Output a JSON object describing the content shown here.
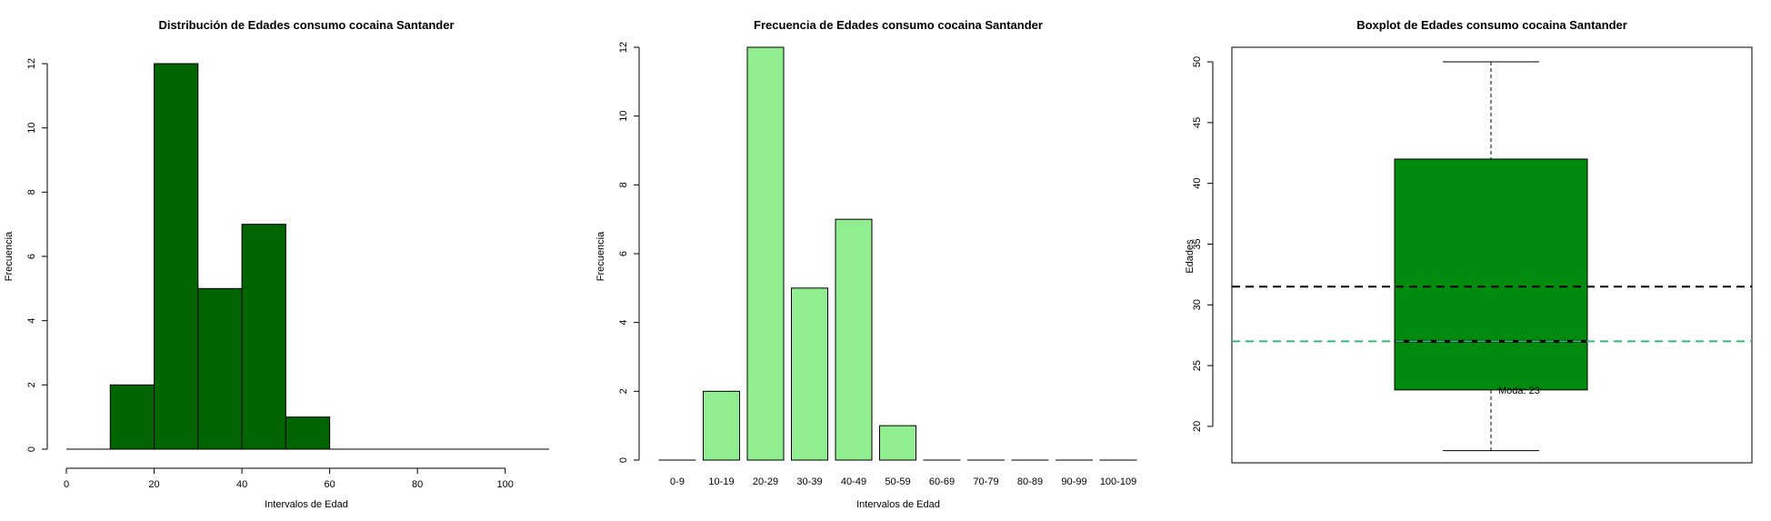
{
  "chart_data": [
    {
      "type": "histogram",
      "title": "Distribución de Edades consumo cocaina Santander",
      "xlabel": "Intervalos de Edad",
      "ylabel": "Frecuencia",
      "bins": [
        [
          10,
          20
        ],
        [
          20,
          30
        ],
        [
          30,
          40
        ],
        [
          40,
          50
        ],
        [
          50,
          60
        ]
      ],
      "values": [
        2,
        12,
        5,
        7,
        1
      ],
      "xlim": [
        0,
        110
      ],
      "ylim": [
        0,
        12
      ],
      "xticks": [
        0,
        20,
        40,
        60,
        80,
        100
      ],
      "yticks": [
        0,
        2,
        4,
        6,
        8,
        10,
        12
      ],
      "color": "#006400",
      "grid": false
    },
    {
      "type": "bar",
      "title": "Frecuencia de Edades consumo cocaina Santander",
      "xlabel": "Intervalos de Edad",
      "ylabel": "Frecuencia",
      "categories": [
        "0-9",
        "10-19",
        "20-29",
        "30-39",
        "40-49",
        "50-59",
        "60-69",
        "70-79",
        "80-89",
        "90-99",
        "100-109"
      ],
      "values": [
        0,
        2,
        12,
        5,
        7,
        1,
        0,
        0,
        0,
        0,
        0
      ],
      "ylim": [
        0,
        12
      ],
      "yticks": [
        0,
        2,
        4,
        6,
        8,
        10,
        12
      ],
      "color": "#90EE90",
      "grid": false
    },
    {
      "type": "boxplot",
      "title": "Boxplot de Edades consumo cocaina Santander",
      "ylabel": "Edades",
      "min": 18,
      "q1": 23,
      "median": 27,
      "q3": 42,
      "max": 50,
      "mean": 31.5,
      "annotation": "Moda: 23",
      "ylim": [
        17,
        51.2
      ],
      "yticks": [
        20,
        25,
        30,
        35,
        40,
        45,
        50
      ],
      "box_color": "#008B0E",
      "mean_line_color": "#000000",
      "median_line_color": "#3CB371",
      "grid": false
    }
  ]
}
